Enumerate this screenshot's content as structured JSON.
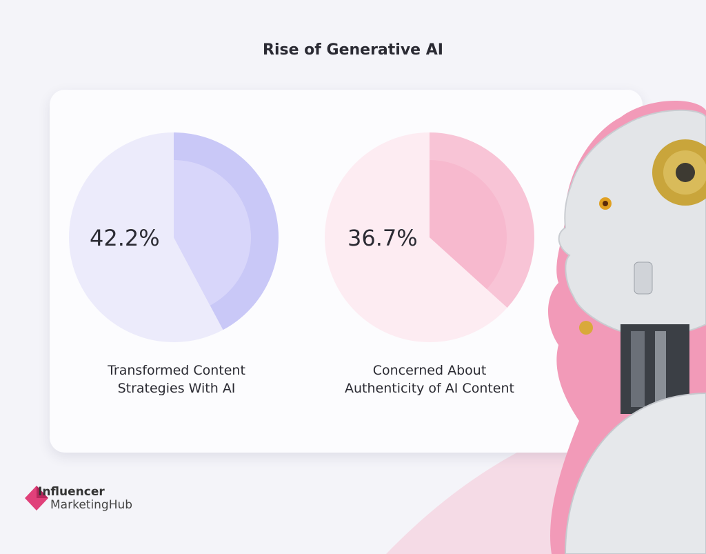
{
  "title": "Rise of Generative AI",
  "chart_data": [
    {
      "type": "pie",
      "value": 42.2,
      "value_label": "42.2%",
      "caption_line1": "Transformed Content",
      "caption_line2": "Strategies With AI",
      "color_base": "#ecebfb",
      "color_slice": "#c9c8f7",
      "color_slice_inner": "#dcdafa"
    },
    {
      "type": "pie",
      "value": 36.7,
      "value_label": "36.7%",
      "caption_line1": "Concerned About",
      "caption_line2": "Authenticity of AI Content",
      "color_base": "#fdecf2",
      "color_slice": "#f8c4d6",
      "color_slice_inner": "#f6b6cc"
    }
  ],
  "brand": {
    "name_top": "Influencer",
    "name_bottom": "MarketingHub",
    "accent": "#e0407a"
  },
  "colors": {
    "background": "#f4f4f9",
    "wave": "#f6d3df",
    "robot_outline": "#f29ab8"
  }
}
